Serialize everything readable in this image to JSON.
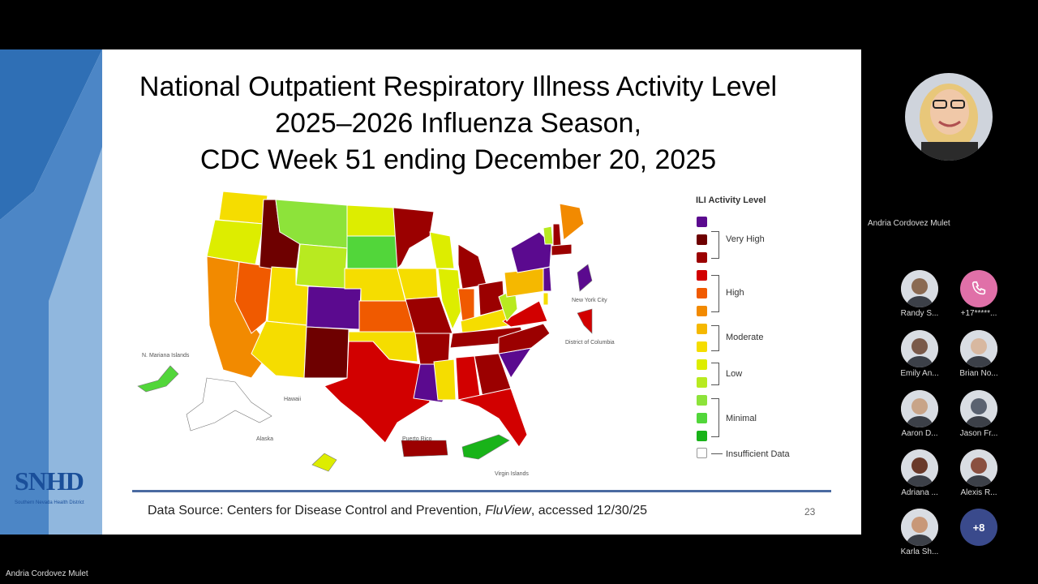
{
  "slide": {
    "title_lines": [
      "National Outpatient Respiratory Illness Activity Level",
      "2025–2026 Influenza Season,",
      "CDC Week 51 ending December 20, 2025"
    ],
    "source_prefix": "Data Source: Centers for Disease Control and Prevention, ",
    "source_italic": "FluView",
    "source_suffix": ", accessed 12/30/25",
    "page_number": "23",
    "logo_text": "SNHD",
    "logo_subtitle": "Southern Nevada Health District",
    "map_labels": {
      "n_mariana": "N. Mariana Islands",
      "hawaii": "Hawaii",
      "alaska": "Alaska",
      "puerto_rico": "Puerto Rico",
      "virgin_islands": "Virgin Islands",
      "nyc": "New York City",
      "dc": "District of Columbia"
    },
    "legend": {
      "title": "ILI Activity Level",
      "levels": [
        {
          "color": "#5b0a8f"
        },
        {
          "color": "#6e0000"
        },
        {
          "color": "#9b0000"
        },
        {
          "color": "#d20000"
        },
        {
          "color": "#f05a00"
        },
        {
          "color": "#f28a00"
        },
        {
          "color": "#f5b800"
        },
        {
          "color": "#f5dd00"
        },
        {
          "color": "#dded00"
        },
        {
          "color": "#b8ea20"
        },
        {
          "color": "#8de33a"
        },
        {
          "color": "#52d63a"
        },
        {
          "color": "#19b319"
        }
      ],
      "groups": [
        {
          "label": "Very High"
        },
        {
          "label": "High"
        },
        {
          "label": "Moderate"
        },
        {
          "label": "Low"
        },
        {
          "label": "Minimal"
        }
      ],
      "insufficient_label": "Insufficient Data"
    }
  },
  "meeting": {
    "presenter_name": "Andria Cordovez Mulet",
    "bottom_name": "Andria Cordovez Mulet",
    "participants": [
      {
        "name": "Randy S..."
      },
      {
        "name": "+17*****..."
      },
      {
        "name": "Emily An..."
      },
      {
        "name": "Brian No..."
      },
      {
        "name": "Aaron D..."
      },
      {
        "name": "Jason Fr..."
      },
      {
        "name": "Adriana ..."
      },
      {
        "name": "Alexis R..."
      },
      {
        "name": "Karla Sh..."
      }
    ],
    "more_count": "+8"
  }
}
